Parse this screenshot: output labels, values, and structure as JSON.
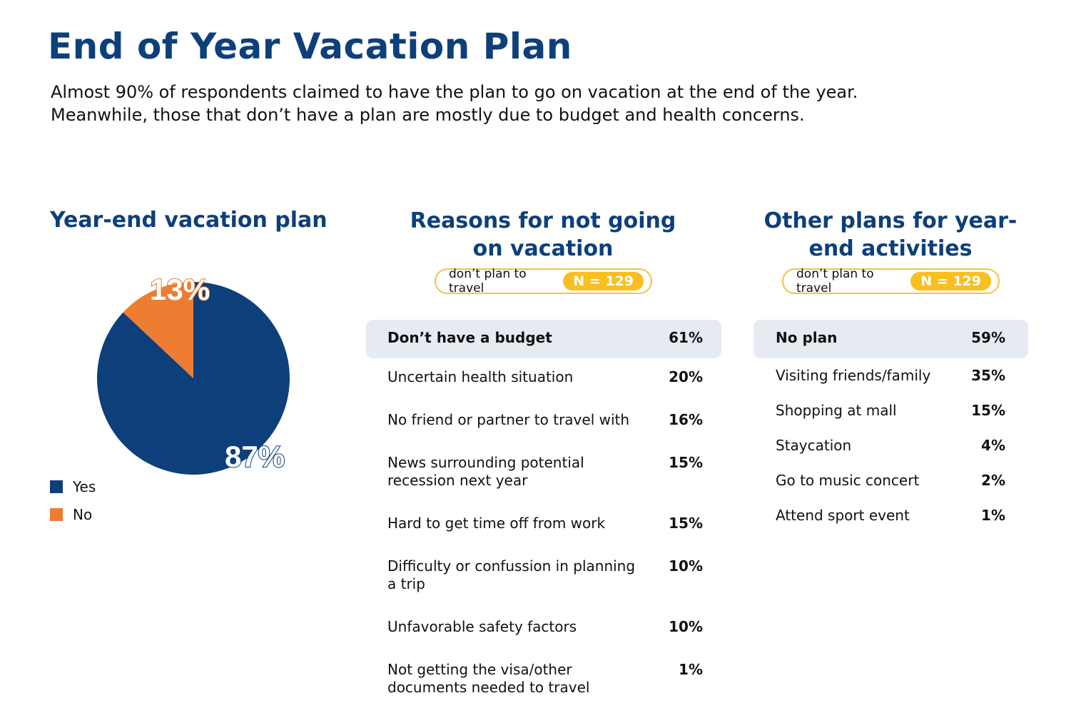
{
  "header": {
    "title": "End of Year Vacation Plan",
    "subtitle_lines": [
      "Almost 90% of respondents claimed to have the plan to go on vacation at the end of the year.",
      "Meanwhile, those that don’t have a plan are mostly due to budget and health concerns."
    ]
  },
  "colors": {
    "navy": "#0d3f7b",
    "orange": "#ed7d31",
    "yellow": "#f9bf1f",
    "highlight": "#e6ebf2"
  },
  "chart_data": [
    {
      "type": "pie",
      "title": "Year-end vacation plan",
      "series": [
        {
          "name": "Yes",
          "value": 87,
          "label": "87%",
          "color": "#0d3f7b"
        },
        {
          "name": "No",
          "value": 13,
          "label": "13%",
          "color": "#ed7d31"
        }
      ],
      "legend": "bottom-left"
    },
    {
      "type": "table",
      "title": "Reasons for not going on vacation",
      "filter": "don’t plan to travel",
      "n_label": "N = 129",
      "n": 129,
      "rows": [
        {
          "label": "Don’t have a budget",
          "value": "61%"
        },
        {
          "label": "Uncertain health situation",
          "value": "20%"
        },
        {
          "label": "No friend or partner to travel with",
          "value": "16%"
        },
        {
          "label": "News surrounding potential recession next year",
          "value": "15%"
        },
        {
          "label": "Hard to get time off from work",
          "value": "15%"
        },
        {
          "label": "Difficulty or confussion in planning a trip",
          "value": "10%"
        },
        {
          "label": "Unfavorable safety factors",
          "value": "10%"
        },
        {
          "label": "Not getting the visa/other documents needed to travel",
          "value": "1%"
        }
      ]
    },
    {
      "type": "table",
      "title": "Other plans for year-end activities",
      "filter": "don’t plan to travel",
      "n_label": "N = 129",
      "n": 129,
      "rows": [
        {
          "label": "No plan",
          "value": "59%"
        },
        {
          "label": "Visiting friends/family",
          "value": "35%"
        },
        {
          "label": "Shopping at mall",
          "value": "15%"
        },
        {
          "label": "Staycation",
          "value": "4%"
        },
        {
          "label": "Go to music concert",
          "value": "2%"
        },
        {
          "label": "Attend sport event",
          "value": "1%"
        }
      ]
    }
  ]
}
